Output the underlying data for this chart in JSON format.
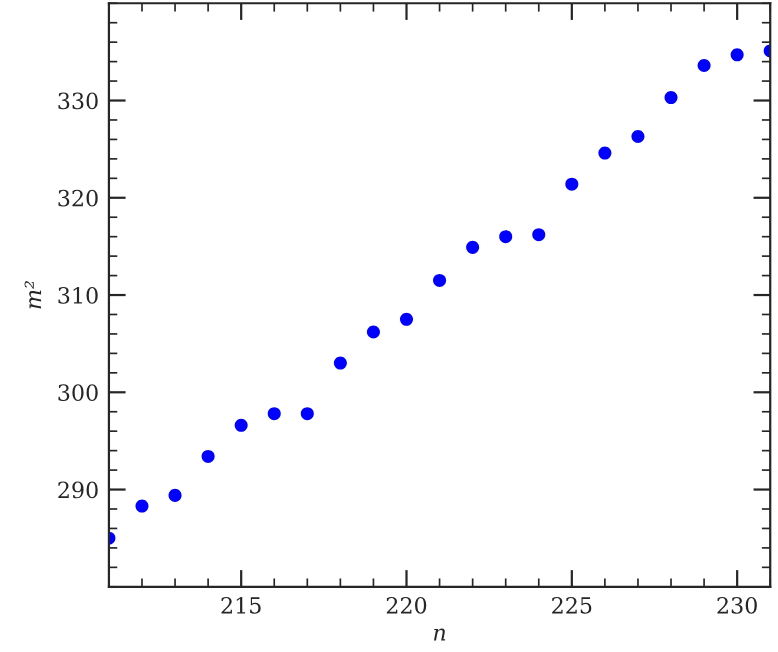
{
  "chart_data": {
    "type": "scatter",
    "xlabel": "n",
    "ylabel": "m²",
    "x": [
      211,
      212,
      213,
      214,
      215,
      216,
      217,
      218,
      219,
      220,
      221,
      222,
      223,
      224,
      225,
      226,
      227,
      228,
      229,
      230,
      231
    ],
    "series": [
      {
        "color": "#0000ff",
        "values": [
          285.0,
          288.3,
          289.4,
          293.4,
          296.6,
          297.8,
          297.8,
          303.0,
          306.2,
          307.5,
          311.5,
          314.9,
          316.0,
          316.2,
          321.4,
          324.6,
          326.3,
          330.3,
          333.6,
          334.7,
          335.1
        ]
      }
    ],
    "xlim": [
      211,
      231
    ],
    "xticks": [
      215,
      220,
      225,
      230
    ],
    "ylim": [
      280,
      340
    ],
    "yticks": [
      290,
      300,
      310,
      320,
      330
    ],
    "marker": "circle",
    "grid": false,
    "legend": false
  }
}
